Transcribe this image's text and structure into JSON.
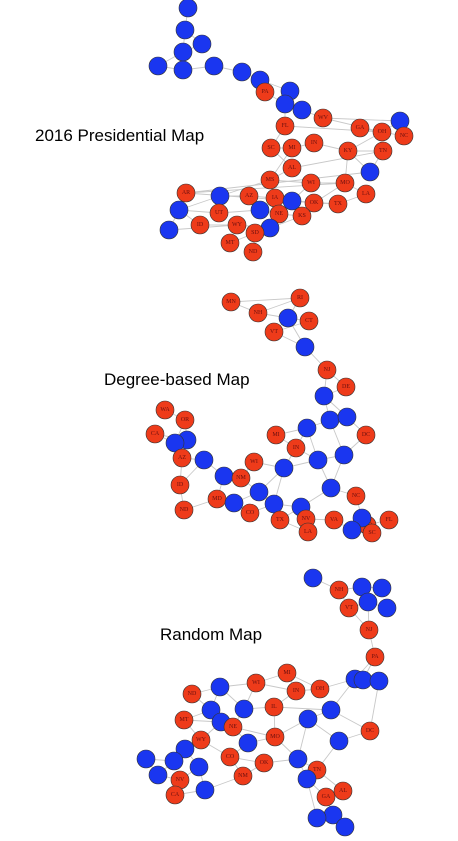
{
  "colors": {
    "red": "#ee3b1a",
    "blue": "#1a36f0"
  },
  "panels": [
    {
      "id": "presidential",
      "title": "2016 Presidential Map",
      "nodes": [
        {
          "c": "b",
          "l": ""
        },
        {
          "c": "b",
          "l": ""
        },
        {
          "c": "b",
          "l": ""
        },
        {
          "c": "b",
          "l": ""
        },
        {
          "c": "b",
          "l": ""
        },
        {
          "c": "b",
          "l": ""
        },
        {
          "c": "b",
          "l": ""
        },
        {
          "c": "b",
          "l": ""
        },
        {
          "c": "b",
          "l": ""
        },
        {
          "c": "b",
          "l": ""
        },
        {
          "c": "r",
          "l": "PA"
        },
        {
          "c": "b",
          "l": ""
        },
        {
          "c": "b",
          "l": ""
        },
        {
          "c": "r",
          "l": "WV"
        },
        {
          "c": "b",
          "l": ""
        },
        {
          "c": "r",
          "l": "FL"
        },
        {
          "c": "r",
          "l": "OH"
        },
        {
          "c": "r",
          "l": "NC"
        },
        {
          "c": "r",
          "l": "GA"
        },
        {
          "c": "r",
          "l": "SC"
        },
        {
          "c": "r",
          "l": "MI"
        },
        {
          "c": "r",
          "l": "IN"
        },
        {
          "c": "r",
          "l": "KY"
        },
        {
          "c": "r",
          "l": "TN"
        },
        {
          "c": "r",
          "l": "AL"
        },
        {
          "c": "b",
          "l": ""
        },
        {
          "c": "r",
          "l": "MS"
        },
        {
          "c": "r",
          "l": "WI"
        },
        {
          "c": "r",
          "l": "MO"
        },
        {
          "c": "r",
          "l": "AR"
        },
        {
          "c": "r",
          "l": "LA"
        },
        {
          "c": "b",
          "l": ""
        },
        {
          "c": "r",
          "l": "AZ"
        },
        {
          "c": "r",
          "l": "IA"
        },
        {
          "c": "b",
          "l": ""
        },
        {
          "c": "r",
          "l": "OK"
        },
        {
          "c": "r",
          "l": "TX"
        },
        {
          "c": "b",
          "l": ""
        },
        {
          "c": "r",
          "l": "UT"
        },
        {
          "c": "b",
          "l": ""
        },
        {
          "c": "r",
          "l": "NE"
        },
        {
          "c": "r",
          "l": "KS"
        },
        {
          "c": "r",
          "l": "ID"
        },
        {
          "c": "r",
          "l": "WY"
        },
        {
          "c": "b",
          "l": ""
        },
        {
          "c": "b",
          "l": ""
        },
        {
          "c": "r",
          "l": "SD"
        },
        {
          "c": "r",
          "l": "MT"
        },
        {
          "c": "r",
          "l": "ND"
        }
      ]
    },
    {
      "id": "degree",
      "title": "Degree-based Map",
      "nodes": [
        {
          "c": "r",
          "l": "RI"
        },
        {
          "c": "r",
          "l": "MN"
        },
        {
          "c": "r",
          "l": "NH"
        },
        {
          "c": "b",
          "l": ""
        },
        {
          "c": "r",
          "l": "CT"
        },
        {
          "c": "r",
          "l": "VT"
        },
        {
          "c": "b",
          "l": ""
        },
        {
          "c": "r",
          "l": "NJ"
        },
        {
          "c": "r",
          "l": "DE"
        },
        {
          "c": "b",
          "l": ""
        },
        {
          "c": "r",
          "l": "WA"
        },
        {
          "c": "r",
          "l": "OR"
        },
        {
          "c": "b",
          "l": ""
        },
        {
          "c": "b",
          "l": ""
        },
        {
          "c": "r",
          "l": "CA"
        },
        {
          "c": "b",
          "l": ""
        },
        {
          "c": "b",
          "l": ""
        },
        {
          "c": "r",
          "l": "MI"
        },
        {
          "c": "b",
          "l": ""
        },
        {
          "c": "r",
          "l": "DC"
        },
        {
          "c": "r",
          "l": "IN"
        },
        {
          "c": "r",
          "l": "AZ"
        },
        {
          "c": "b",
          "l": ""
        },
        {
          "c": "b",
          "l": ""
        },
        {
          "c": "b",
          "l": ""
        },
        {
          "c": "r",
          "l": "WI"
        },
        {
          "c": "b",
          "l": ""
        },
        {
          "c": "b",
          "l": ""
        },
        {
          "c": "r",
          "l": "ID"
        },
        {
          "c": "r",
          "l": "NM"
        },
        {
          "c": "b",
          "l": ""
        },
        {
          "c": "b",
          "l": ""
        },
        {
          "c": "r",
          "l": "NC"
        },
        {
          "c": "r",
          "l": "MD"
        },
        {
          "c": "r",
          "l": "ND"
        },
        {
          "c": "b",
          "l": ""
        },
        {
          "c": "r",
          "l": "CO"
        },
        {
          "c": "b",
          "l": ""
        },
        {
          "c": "b",
          "l": ""
        },
        {
          "c": "r",
          "l": "NV"
        },
        {
          "c": "r",
          "l": "VA"
        },
        {
          "c": "r",
          "l": "FL"
        },
        {
          "c": "r",
          "l": "TX"
        },
        {
          "c": "r",
          "l": "MO"
        },
        {
          "c": "b",
          "l": ""
        },
        {
          "c": "r",
          "l": "SC"
        },
        {
          "c": "r",
          "l": "LA"
        },
        {
          "c": "b",
          "l": ""
        }
      ]
    },
    {
      "id": "random",
      "title": "Random Map",
      "nodes": [
        {
          "c": "b",
          "l": ""
        },
        {
          "c": "r",
          "l": "NH"
        },
        {
          "c": "b",
          "l": ""
        },
        {
          "c": "b",
          "l": ""
        },
        {
          "c": "r",
          "l": "VT"
        },
        {
          "c": "b",
          "l": ""
        },
        {
          "c": "b",
          "l": ""
        },
        {
          "c": "r",
          "l": "NJ"
        },
        {
          "c": "r",
          "l": "PA"
        },
        {
          "c": "b",
          "l": ""
        },
        {
          "c": "r",
          "l": "MI"
        },
        {
          "c": "r",
          "l": "WI"
        },
        {
          "c": "r",
          "l": "IN"
        },
        {
          "c": "r",
          "l": "OH"
        },
        {
          "c": "r",
          "l": "ND"
        },
        {
          "c": "b",
          "l": ""
        },
        {
          "c": "b",
          "l": ""
        },
        {
          "c": "b",
          "l": ""
        },
        {
          "c": "b",
          "l": ""
        },
        {
          "c": "b",
          "l": ""
        },
        {
          "c": "r",
          "l": "MT"
        },
        {
          "c": "b",
          "l": ""
        },
        {
          "c": "r",
          "l": "IL"
        },
        {
          "c": "b",
          "l": ""
        },
        {
          "c": "r",
          "l": "DC"
        },
        {
          "c": "r",
          "l": "WY"
        },
        {
          "c": "r",
          "l": "NE"
        },
        {
          "c": "r",
          "l": "MO"
        },
        {
          "c": "b",
          "l": ""
        },
        {
          "c": "b",
          "l": ""
        },
        {
          "c": "r",
          "l": "CO"
        },
        {
          "c": "b",
          "l": ""
        },
        {
          "c": "b",
          "l": ""
        },
        {
          "c": "b",
          "l": ""
        },
        {
          "c": "b",
          "l": ""
        },
        {
          "c": "b",
          "l": ""
        },
        {
          "c": "r",
          "l": "OK"
        },
        {
          "c": "r",
          "l": "TN"
        },
        {
          "c": "r",
          "l": "NM"
        },
        {
          "c": "b",
          "l": ""
        },
        {
          "c": "b",
          "l": ""
        },
        {
          "c": "r",
          "l": "NV"
        },
        {
          "c": "b",
          "l": ""
        },
        {
          "c": "r",
          "l": "CA"
        },
        {
          "c": "b",
          "l": ""
        },
        {
          "c": "r",
          "l": "GA"
        },
        {
          "c": "r",
          "l": "AL"
        },
        {
          "c": "b",
          "l": ""
        },
        {
          "c": "b",
          "l": ""
        },
        {
          "c": "b",
          "l": ""
        }
      ]
    }
  ]
}
